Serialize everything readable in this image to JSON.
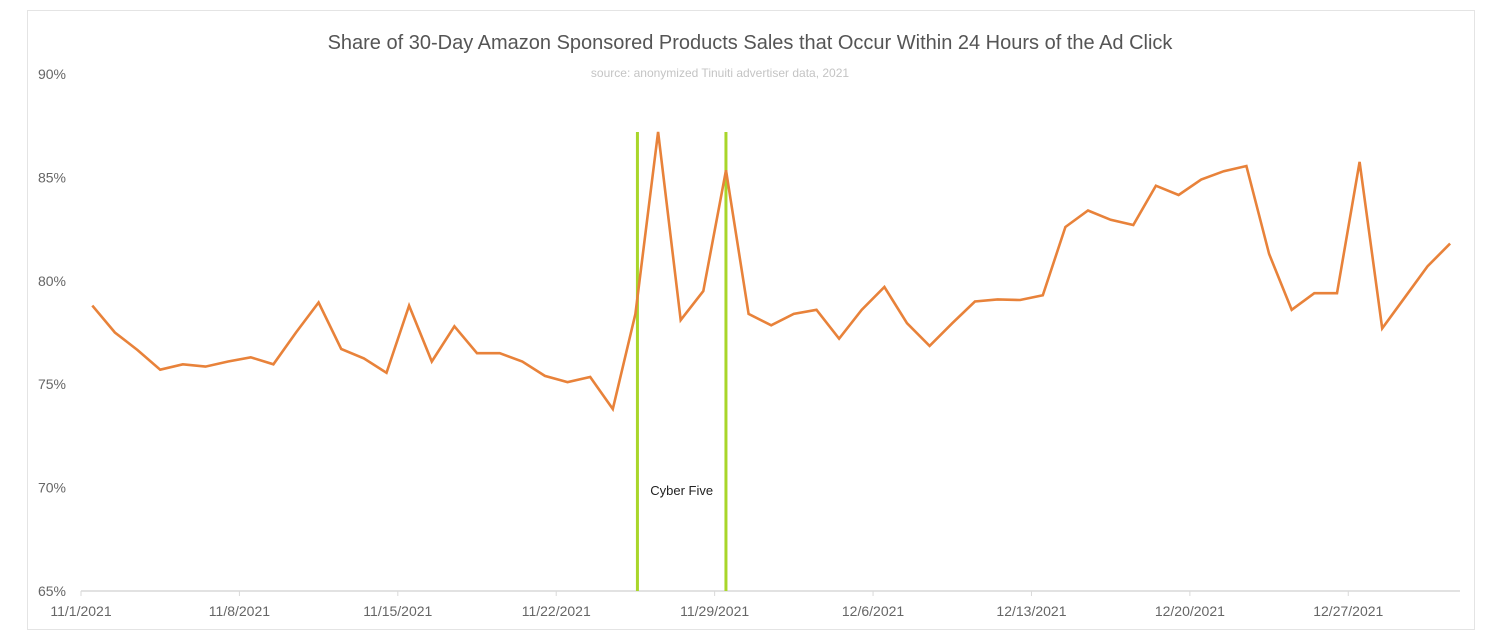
{
  "chart_data": {
    "type": "line",
    "title": "Share of 30-Day Amazon Sponsored Products Sales that Occur Within 24 Hours of the Ad Click",
    "subtitle": "source: anonymized Tinuiti advertiser data, 2021",
    "xlabel": "",
    "ylabel": "",
    "ylim": [
      65,
      90
    ],
    "y_ticks": [
      "65%",
      "70%",
      "75%",
      "80%",
      "85%",
      "90%"
    ],
    "x_ticks": [
      "11/1/2021",
      "11/8/2021",
      "11/15/2021",
      "11/22/2021",
      "11/29/2021",
      "12/6/2021",
      "12/13/2021",
      "12/20/2021",
      "12/27/2021"
    ],
    "x_start": "11/1/2021",
    "x_end": "12/31/2021",
    "x_interval": "daily",
    "grid": false,
    "line_color": "#e8823a",
    "values": [
      78.8,
      77.5,
      76.65,
      75.7,
      75.96,
      75.85,
      76.1,
      76.3,
      75.96,
      77.5,
      78.95,
      76.7,
      76.25,
      75.55,
      78.8,
      76.1,
      77.8,
      76.5,
      76.5,
      76.1,
      75.4,
      75.1,
      75.35,
      73.8,
      78.4,
      87.2,
      78.1,
      79.5,
      85.35,
      78.4,
      77.85,
      78.4,
      78.6,
      77.2,
      78.6,
      79.7,
      77.95,
      76.85,
      77.95,
      79.0,
      79.1,
      79.07,
      79.3,
      82.6,
      83.4,
      82.95,
      82.7,
      84.6,
      84.15,
      84.9,
      85.3,
      85.55,
      81.3,
      78.6,
      79.4,
      79.4,
      85.75,
      77.7,
      79.2,
      80.7,
      81.8
    ],
    "annotations": {
      "label": "Cyber Five",
      "marker_color": "#a8d62a",
      "start": "11/25/2021",
      "end": "11/29/2021"
    }
  }
}
